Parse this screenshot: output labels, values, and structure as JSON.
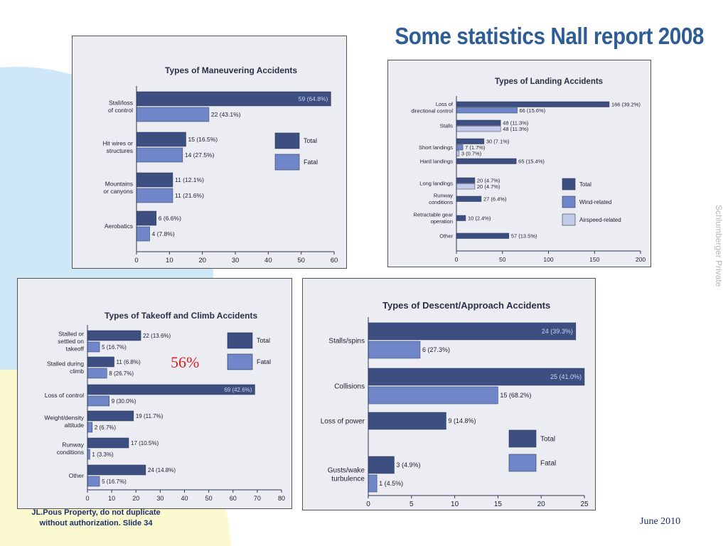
{
  "slide": {
    "title": "Some statistics Nall report 2008",
    "side_label": "Schlumberger Private",
    "footer_line1": "JL.Pous Property, do not duplicate",
    "footer_line2": "without authorization.  Slide 34",
    "date": "June 2010",
    "highlight": "56%"
  },
  "colors": {
    "total": "#3d4f80",
    "fatal": "#6f86c9",
    "wind": "#6f86c9",
    "airspeed": "#c3cbe8",
    "panel_bg": "#ecedf3",
    "accent_blue": "#cfe8f8",
    "accent_yellow": "#fbf9cf"
  },
  "chart_data": [
    {
      "id": "maneuvering",
      "type": "bar",
      "orientation": "horizontal",
      "title": "Types of Maneuvering Accidents",
      "categories": [
        "Stall/loss\nof control",
        "Hit wires or\nstructures",
        "Mountains\nor canyons",
        "Aerobatics"
      ],
      "series": [
        {
          "name": "Total",
          "values": [
            59,
            15,
            11,
            6
          ],
          "labels": [
            "59 (64.8%)",
            "15 (16.5%)",
            "11 (12.1%)",
            "6 (6.6%)"
          ]
        },
        {
          "name": "Fatal",
          "values": [
            22,
            14,
            11,
            4
          ],
          "labels": [
            "22 (43.1%)",
            "14 (27.5%)",
            "11 (21.6%)",
            "4 (7.8%)"
          ]
        }
      ],
      "xlim": [
        0,
        60
      ],
      "xticks": [
        "0",
        "10",
        "20",
        "30",
        "40",
        "50",
        "60"
      ],
      "legend": "right"
    },
    {
      "id": "landing",
      "type": "bar",
      "orientation": "horizontal",
      "title": "Types of Landing Accidents",
      "categories": [
        "Loss of\ndirectional control",
        "Stalls",
        "Short landings",
        "Hard landings",
        "Long landings",
        "Runway\nconditions",
        "Retractable gear\noperation",
        "Other"
      ],
      "series": [
        {
          "name": "Total",
          "values": [
            166,
            48,
            30,
            65,
            20,
            27,
            10,
            57
          ],
          "labels": [
            "166 (39.2%)",
            "48 (11.3%)",
            "30 (7.1%)",
            "65 (15.4%)",
            "20 (4.7%)",
            "27 (6.4%)",
            "10 (2.4%)",
            "57 (13.5%)"
          ]
        },
        {
          "name": "Wind-related",
          "values": [
            66,
            null,
            7,
            null,
            null,
            null,
            null,
            null
          ],
          "labels": [
            "66 (15.6%)",
            "",
            "7 (1.7%)",
            "",
            "",
            "",
            "",
            ""
          ]
        },
        {
          "name": "Airspeed-related",
          "values": [
            null,
            48,
            3,
            null,
            20,
            null,
            null,
            null
          ],
          "labels": [
            "",
            "48 (11.3%)",
            "3 (0.7%)",
            "",
            "20 (4.7%)",
            "",
            "",
            ""
          ]
        }
      ],
      "xlim": [
        0,
        200
      ],
      "xticks": [
        "0",
        "50",
        "100",
        "150",
        "200"
      ],
      "legend": "right"
    },
    {
      "id": "takeoff",
      "type": "bar",
      "orientation": "horizontal",
      "title": "Types of Takeoff and Climb Accidents",
      "categories": [
        "Stalled or\nsettled on\ntakeoff",
        "Stalled during\nclimb",
        "Loss of control",
        "Weight/density\naltitude",
        "Runway\nconditions",
        "Other"
      ],
      "series": [
        {
          "name": "Total",
          "values": [
            22,
            11,
            69,
            19,
            17,
            24
          ],
          "labels": [
            "22 (13.6%)",
            "11 (6.8%)",
            "69 (42.6%)",
            "19 (11.7%)",
            "17 (10.5%)",
            "24 (14.8%)"
          ]
        },
        {
          "name": "Fatal",
          "values": [
            5,
            8,
            9,
            2,
            1,
            5
          ],
          "labels": [
            "5 (16.7%)",
            "8 (26.7%)",
            "9 (30.0%)",
            "2 (6.7%)",
            "1 (3.3%)",
            "5 (16.7%)"
          ]
        }
      ],
      "xlim": [
        0,
        80
      ],
      "xticks": [
        "0",
        "10",
        "20",
        "30",
        "40",
        "50",
        "60",
        "70",
        "80"
      ],
      "legend": "right"
    },
    {
      "id": "descent",
      "type": "bar",
      "orientation": "horizontal",
      "title": "Types of Descent/Approach Accidents",
      "categories": [
        "Stalls/spins",
        "Collisions",
        "Loss of power",
        "Gusts/wake\nturbulence"
      ],
      "series": [
        {
          "name": "Total",
          "values": [
            24,
            25,
            9,
            3
          ],
          "labels": [
            "24 (39.3%)",
            "25 (41.0%)",
            "9 (14.8%)",
            "3 (4.9%)"
          ]
        },
        {
          "name": "Fatal",
          "values": [
            6,
            15,
            null,
            1
          ],
          "labels": [
            "6 (27.3%)",
            "15 (68.2%)",
            "",
            "1 (4.5%)"
          ]
        }
      ],
      "xlim": [
        0,
        25
      ],
      "xticks": [
        "0",
        "5",
        "10",
        "15",
        "20",
        "25"
      ],
      "legend": "right"
    }
  ]
}
